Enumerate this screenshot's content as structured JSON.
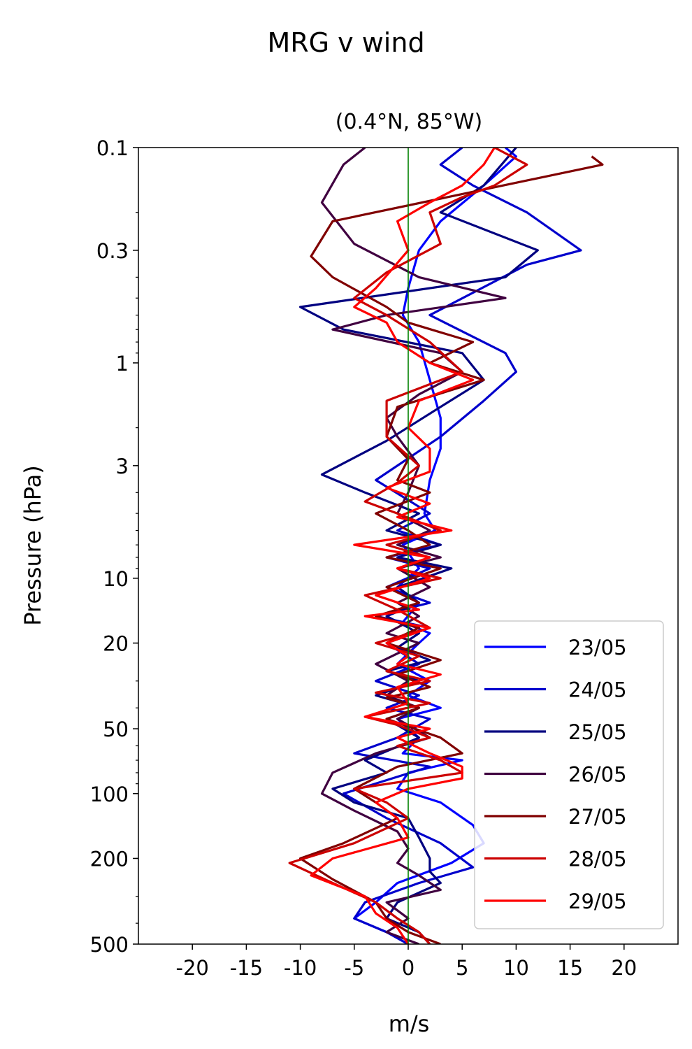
{
  "chart_data": {
    "type": "line",
    "suptitle": "MRG v wind",
    "title": "(0.4°N, 85°W)",
    "xlabel": "m/s",
    "ylabel": "Pressure (hPa)",
    "xlim": [
      -25,
      25
    ],
    "ylim": [
      500,
      0.1
    ],
    "yscale": "log",
    "y_inverted": true,
    "grid": false,
    "legend_position": "bottom-right",
    "xticks": [
      -20,
      -15,
      -10,
      -5,
      0,
      5,
      10,
      15,
      20
    ],
    "xtick_labels": [
      "-20",
      "-15",
      "-10",
      "-5",
      "0",
      "5",
      "10",
      "15",
      "20"
    ],
    "yticks": [
      0.1,
      0.3,
      1,
      3,
      10,
      20,
      50,
      100,
      200,
      500
    ],
    "ytick_labels": [
      "0.1",
      "0.3",
      "1",
      "3",
      "10",
      "20",
      "50",
      "100",
      "200",
      "500"
    ],
    "reference_line": {
      "x": 0,
      "color": "#008000"
    },
    "series": [
      {
        "name": "23/05",
        "color": "#0000ff",
        "points": [
          [
            9,
            0.1
          ],
          [
            10,
            0.11
          ],
          [
            7,
            0.15
          ],
          [
            3,
            0.22
          ],
          [
            1,
            0.3
          ],
          [
            0,
            0.45
          ],
          [
            -0.5,
            0.6
          ],
          [
            1,
            0.8
          ],
          [
            2,
            1.2
          ],
          [
            3,
            1.8
          ],
          [
            3,
            2.5
          ],
          [
            2,
            3.5
          ],
          [
            1.5,
            5
          ],
          [
            2.5,
            6
          ],
          [
            -0.5,
            7
          ],
          [
            1,
            9
          ],
          [
            -1,
            11
          ],
          [
            1,
            13
          ],
          [
            -0.5,
            16
          ],
          [
            2,
            18
          ],
          [
            1,
            20
          ],
          [
            -1,
            25
          ],
          [
            2,
            30
          ],
          [
            0,
            35
          ],
          [
            3,
            40
          ],
          [
            -1,
            45
          ],
          [
            1,
            55
          ],
          [
            -0.5,
            65
          ],
          [
            5,
            70
          ],
          [
            0,
            80
          ],
          [
            -1,
            95
          ],
          [
            3,
            110
          ],
          [
            6,
            140
          ],
          [
            7,
            170
          ],
          [
            4,
            210
          ],
          [
            -1,
            260
          ],
          [
            -3,
            320
          ],
          [
            -5,
            380
          ],
          [
            -2,
            440
          ],
          [
            0,
            500
          ]
        ]
      },
      {
        "name": "24/05",
        "color": "#0000cc",
        "points": [
          [
            5,
            0.1
          ],
          [
            3,
            0.12
          ],
          [
            6,
            0.15
          ],
          [
            11,
            0.2
          ],
          [
            16,
            0.3
          ],
          [
            11,
            0.35
          ],
          [
            2,
            0.6
          ],
          [
            9,
            0.9
          ],
          [
            10,
            1.1
          ],
          [
            7,
            1.5
          ],
          [
            3,
            2.2
          ],
          [
            -3,
            3.5
          ],
          [
            2,
            5
          ],
          [
            -1,
            6
          ],
          [
            3,
            7
          ],
          [
            -2,
            8
          ],
          [
            2,
            9
          ],
          [
            -2,
            11
          ],
          [
            2,
            13
          ],
          [
            -3,
            15
          ],
          [
            2,
            17
          ],
          [
            -2,
            20
          ],
          [
            1,
            25
          ],
          [
            -3,
            30
          ],
          [
            1,
            35
          ],
          [
            -2,
            40
          ],
          [
            2,
            45
          ],
          [
            -1,
            55
          ],
          [
            -5,
            65
          ],
          [
            2,
            75
          ],
          [
            -6,
            100
          ],
          [
            -2,
            130
          ],
          [
            3,
            170
          ],
          [
            6,
            220
          ],
          [
            1,
            260
          ],
          [
            -4,
            320
          ],
          [
            -5,
            380
          ],
          [
            -2,
            440
          ],
          [
            0,
            500
          ]
        ]
      },
      {
        "name": "25/05",
        "color": "#000080",
        "points": [
          [
            10,
            0.1
          ],
          [
            7,
            0.15
          ],
          [
            3,
            0.2
          ],
          [
            12,
            0.3
          ],
          [
            9,
            0.4
          ],
          [
            -10,
            0.55
          ],
          [
            -6,
            0.7
          ],
          [
            5,
            0.9
          ],
          [
            7,
            1.2
          ],
          [
            3,
            1.6
          ],
          [
            -2,
            2.3
          ],
          [
            -8,
            3.3
          ],
          [
            -4,
            4
          ],
          [
            1,
            5
          ],
          [
            -2,
            6
          ],
          [
            3,
            7
          ],
          [
            -1,
            8
          ],
          [
            4,
            9
          ],
          [
            -1,
            11
          ],
          [
            1,
            13
          ],
          [
            -2,
            15
          ],
          [
            1,
            18
          ],
          [
            -1,
            21
          ],
          [
            2,
            24
          ],
          [
            -2,
            27
          ],
          [
            1,
            30
          ],
          [
            -3,
            35
          ],
          [
            1,
            40
          ],
          [
            -2,
            45
          ],
          [
            1,
            55
          ],
          [
            -4,
            70
          ],
          [
            -2,
            80
          ],
          [
            -7,
            95
          ],
          [
            -5,
            110
          ],
          [
            0,
            130
          ],
          [
            1,
            160
          ],
          [
            2,
            200
          ],
          [
            2,
            230
          ],
          [
            3,
            260
          ],
          [
            -1,
            320
          ],
          [
            -2,
            380
          ],
          [
            1,
            440
          ],
          [
            2,
            500
          ]
        ]
      },
      {
        "name": "26/05",
        "color": "#400040",
        "points": [
          [
            -4,
            0.1
          ],
          [
            -6,
            0.12
          ],
          [
            -8,
            0.18
          ],
          [
            -5,
            0.28
          ],
          [
            1,
            0.4
          ],
          [
            9,
            0.5
          ],
          [
            -2,
            0.6
          ],
          [
            -7,
            0.7
          ],
          [
            3,
            0.9
          ],
          [
            5,
            1.1
          ],
          [
            1,
            1.4
          ],
          [
            -2,
            1.8
          ],
          [
            -1,
            2.2
          ],
          [
            1,
            3
          ],
          [
            0,
            4
          ],
          [
            -1,
            5
          ],
          [
            2,
            6
          ],
          [
            -1,
            7
          ],
          [
            3,
            8
          ],
          [
            -1,
            9
          ],
          [
            2,
            11
          ],
          [
            -1,
            13
          ],
          [
            1,
            15
          ],
          [
            -2,
            18
          ],
          [
            1,
            20
          ],
          [
            -3,
            25
          ],
          [
            0,
            30
          ],
          [
            -2,
            35
          ],
          [
            1,
            40
          ],
          [
            -1,
            45
          ],
          [
            2,
            55
          ],
          [
            -3,
            65
          ],
          [
            -7,
            80
          ],
          [
            -8,
            100
          ],
          [
            -5,
            120
          ],
          [
            -1,
            150
          ],
          [
            0,
            180
          ],
          [
            -1,
            210
          ],
          [
            1,
            240
          ],
          [
            3,
            280
          ],
          [
            -2,
            320
          ],
          [
            0,
            380
          ],
          [
            -2,
            440
          ],
          [
            1,
            500
          ]
        ]
      },
      {
        "name": "27/05",
        "color": "#800000",
        "points": [
          [
            17,
            0.11
          ],
          [
            18,
            0.12
          ],
          [
            -7,
            0.22
          ],
          [
            -9,
            0.32
          ],
          [
            -7,
            0.4
          ],
          [
            -2,
            0.55
          ],
          [
            0,
            0.65
          ],
          [
            6,
            0.8
          ],
          [
            2,
            1.0
          ],
          [
            7,
            1.2
          ],
          [
            -1,
            1.6
          ],
          [
            -2,
            2.2
          ],
          [
            0,
            2.8
          ],
          [
            -1,
            3.5
          ],
          [
            2,
            4
          ],
          [
            -3,
            5
          ],
          [
            0,
            6
          ],
          [
            2,
            7
          ],
          [
            -2,
            8
          ],
          [
            3,
            9
          ],
          [
            -2,
            11
          ],
          [
            1,
            13
          ],
          [
            -3,
            15
          ],
          [
            1,
            17
          ],
          [
            -2,
            20
          ],
          [
            3,
            24
          ],
          [
            -1,
            28
          ],
          [
            2,
            32
          ],
          [
            -2,
            36
          ],
          [
            1,
            40
          ],
          [
            -2,
            45
          ],
          [
            3,
            55
          ],
          [
            5,
            65
          ],
          [
            -1,
            75
          ],
          [
            -5,
            95
          ],
          [
            -3,
            110
          ],
          [
            -1,
            130
          ],
          [
            -6,
            170
          ],
          [
            -10,
            200
          ],
          [
            -7,
            250
          ],
          [
            -3,
            320
          ],
          [
            -2,
            380
          ],
          [
            0,
            440
          ],
          [
            3,
            500
          ]
        ]
      },
      {
        "name": "28/05",
        "color": "#cc0000",
        "points": [
          [
            8,
            0.1
          ],
          [
            11,
            0.12
          ],
          [
            8,
            0.15
          ],
          [
            5,
            0.17
          ],
          [
            2,
            0.2
          ],
          [
            3,
            0.28
          ],
          [
            -2,
            0.38
          ],
          [
            -5,
            0.5
          ],
          [
            -2,
            0.6
          ],
          [
            2,
            0.8
          ],
          [
            5,
            1.1
          ],
          [
            -2,
            1.5
          ],
          [
            -2,
            2.2
          ],
          [
            1,
            3
          ],
          [
            -1,
            3.6
          ],
          [
            -4,
            4.4
          ],
          [
            -1,
            5
          ],
          [
            3,
            6
          ],
          [
            -2,
            7
          ],
          [
            2,
            8
          ],
          [
            -1,
            9
          ],
          [
            3,
            10
          ],
          [
            -4,
            12
          ],
          [
            -1,
            14
          ],
          [
            2,
            17
          ],
          [
            -3,
            20
          ],
          [
            1,
            23
          ],
          [
            -2,
            27
          ],
          [
            2,
            30
          ],
          [
            -3,
            34
          ],
          [
            2,
            38
          ],
          [
            -4,
            44
          ],
          [
            -1,
            48
          ],
          [
            2,
            55
          ],
          [
            -1,
            60
          ],
          [
            3,
            70
          ],
          [
            5,
            80
          ],
          [
            -5,
            95
          ],
          [
            -2,
            110
          ],
          [
            0,
            130
          ],
          [
            -5,
            170
          ],
          [
            -11,
            210
          ],
          [
            -7,
            260
          ],
          [
            -3,
            320
          ],
          [
            -1,
            380
          ],
          [
            1,
            440
          ],
          [
            2,
            500
          ]
        ]
      },
      {
        "name": "29/05",
        "color": "#ff0000",
        "points": [
          [
            8,
            0.1
          ],
          [
            7,
            0.12
          ],
          [
            5,
            0.15
          ],
          [
            2,
            0.18
          ],
          [
            -1,
            0.22
          ],
          [
            0,
            0.3
          ],
          [
            -3,
            0.45
          ],
          [
            -5,
            0.55
          ],
          [
            -2,
            0.65
          ],
          [
            -1,
            0.8
          ],
          [
            2,
            1.0
          ],
          [
            6,
            1.2
          ],
          [
            1,
            1.5
          ],
          [
            0,
            2
          ],
          [
            2,
            2.5
          ],
          [
            2,
            3.2
          ],
          [
            -2,
            3.8
          ],
          [
            2,
            4.5
          ],
          [
            -1,
            5.2
          ],
          [
            4,
            6
          ],
          [
            -5,
            7
          ],
          [
            2,
            8
          ],
          [
            -1,
            9
          ],
          [
            2,
            10
          ],
          [
            -3,
            12
          ],
          [
            1,
            14
          ],
          [
            -4,
            15
          ],
          [
            2,
            17
          ],
          [
            -2,
            20
          ],
          [
            0,
            23
          ],
          [
            -1,
            25
          ],
          [
            3,
            28
          ],
          [
            -1,
            32
          ],
          [
            0,
            38
          ],
          [
            -4,
            44
          ],
          [
            2,
            50
          ],
          [
            -1,
            55
          ],
          [
            2,
            65
          ],
          [
            5,
            75
          ],
          [
            5,
            85
          ],
          [
            0,
            95
          ],
          [
            -3,
            110
          ],
          [
            -1,
            130
          ],
          [
            0,
            160
          ],
          [
            -7,
            200
          ],
          [
            -9,
            240
          ],
          [
            -4,
            300
          ],
          [
            -3,
            360
          ],
          [
            -1,
            420
          ],
          [
            0,
            500
          ]
        ]
      }
    ]
  }
}
